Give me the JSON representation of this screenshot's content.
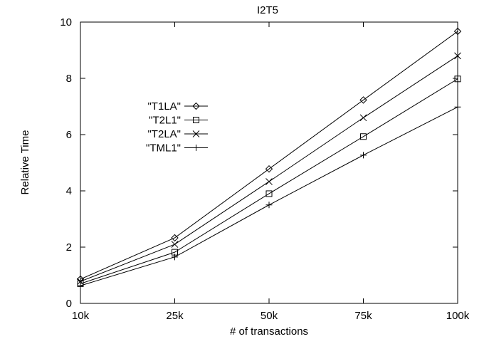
{
  "chart_data": {
    "type": "line",
    "title": "I2T5",
    "xlabel": "# of transactions",
    "ylabel": "Relative Time",
    "categories": [
      "10k",
      "25k",
      "50k",
      "75k",
      "100k"
    ],
    "ylim": [
      0,
      10
    ],
    "yticks": [
      0,
      2,
      4,
      6,
      8,
      10
    ],
    "grid": false,
    "legend_position": "left",
    "series": [
      {
        "name": "\"T1LA\"",
        "marker": "diamond",
        "values": [
          0.86,
          2.33,
          4.78,
          7.23,
          9.67
        ]
      },
      {
        "name": "\"T2L1\"",
        "marker": "square",
        "values": [
          0.7,
          1.82,
          3.9,
          5.93,
          7.98
        ]
      },
      {
        "name": "\"T2LA\"",
        "marker": "x",
        "values": [
          0.78,
          2.1,
          4.33,
          6.6,
          8.8
        ]
      },
      {
        "name": "\"TML1\"",
        "marker": "plus",
        "values": [
          0.63,
          1.65,
          3.5,
          5.27,
          6.98
        ]
      }
    ],
    "colors": {
      "line": "#000000",
      "background": "#ffffff"
    }
  }
}
